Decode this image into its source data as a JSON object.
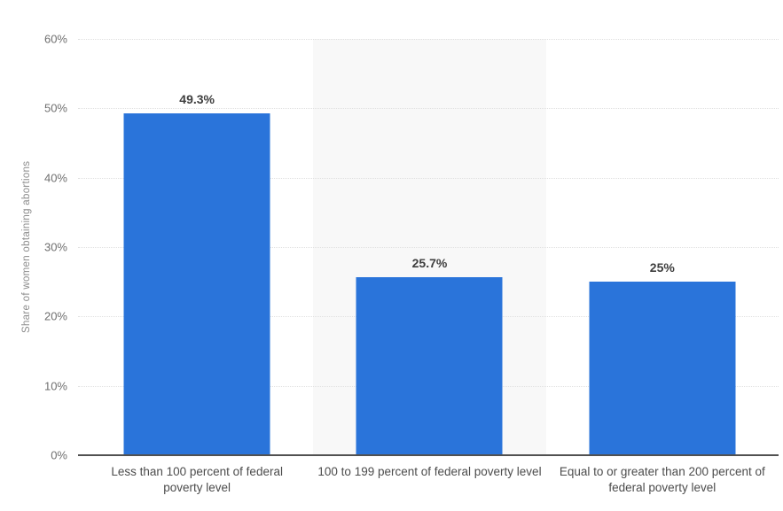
{
  "chart_data": {
    "type": "bar",
    "title": "",
    "ylabel": "Share of women obtaining abortions",
    "xlabel": "",
    "categories": [
      "Less than 100 percent of federal poverty level",
      "100 to 199 percent of federal poverty level",
      "Equal to or greater than 200 percent of federal poverty level"
    ],
    "values": [
      49.3,
      25.7,
      25
    ],
    "value_labels": [
      "49.3%",
      "25.7%",
      "25%"
    ],
    "ylim": [
      0,
      60
    ],
    "yticks": [
      "60%",
      "50%",
      "40%",
      "30%",
      "20%",
      "10%",
      "0%"
    ],
    "ytick_values": [
      60,
      50,
      40,
      30,
      20,
      10,
      0
    ],
    "grid": "horizontal-dotted",
    "legend": "none",
    "bar_color": "#2a74da",
    "highlight_band_index": 1,
    "highlight_band_color": "#f8f8f8"
  }
}
